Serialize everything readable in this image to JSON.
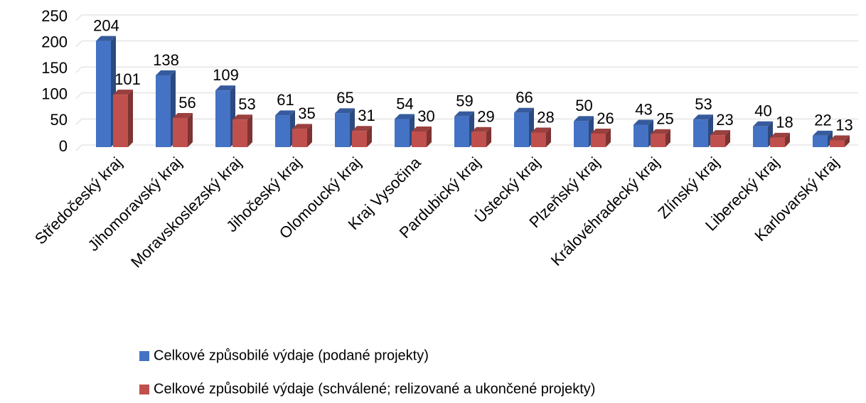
{
  "chart_data": {
    "type": "bar3d",
    "categories": [
      "Středočeský kraj",
      "Jihomoravský kraj",
      "Moravskoslezský kraj",
      "Jihočeský kraj",
      "Olomoucký kraj",
      "Kraj Vysočina",
      "Pardubický kraj",
      "Ústecký kraj",
      "Plzeňský kraj",
      "Královéhradecký kraj",
      "Zlínský kraj",
      "Liberecký kraj",
      "Karlovarský kraj"
    ],
    "series": [
      {
        "name": "Celkové způsobilé výdaje (podané projekty)",
        "color": "#4472c4",
        "values": [
          204,
          138,
          109,
          61,
          65,
          54,
          59,
          66,
          50,
          43,
          53,
          40,
          22
        ]
      },
      {
        "name": "Celkové způsobilé výdaje (schválené; relizované a ukončené projekty)",
        "color": "#c0504d",
        "values": [
          101,
          56,
          53,
          35,
          31,
          30,
          29,
          28,
          26,
          25,
          23,
          18,
          13
        ]
      }
    ],
    "ylim": [
      0,
      250
    ],
    "yticks": [
      0,
      50,
      100,
      150,
      200,
      250
    ],
    "grid": true,
    "legend": "bottom"
  }
}
